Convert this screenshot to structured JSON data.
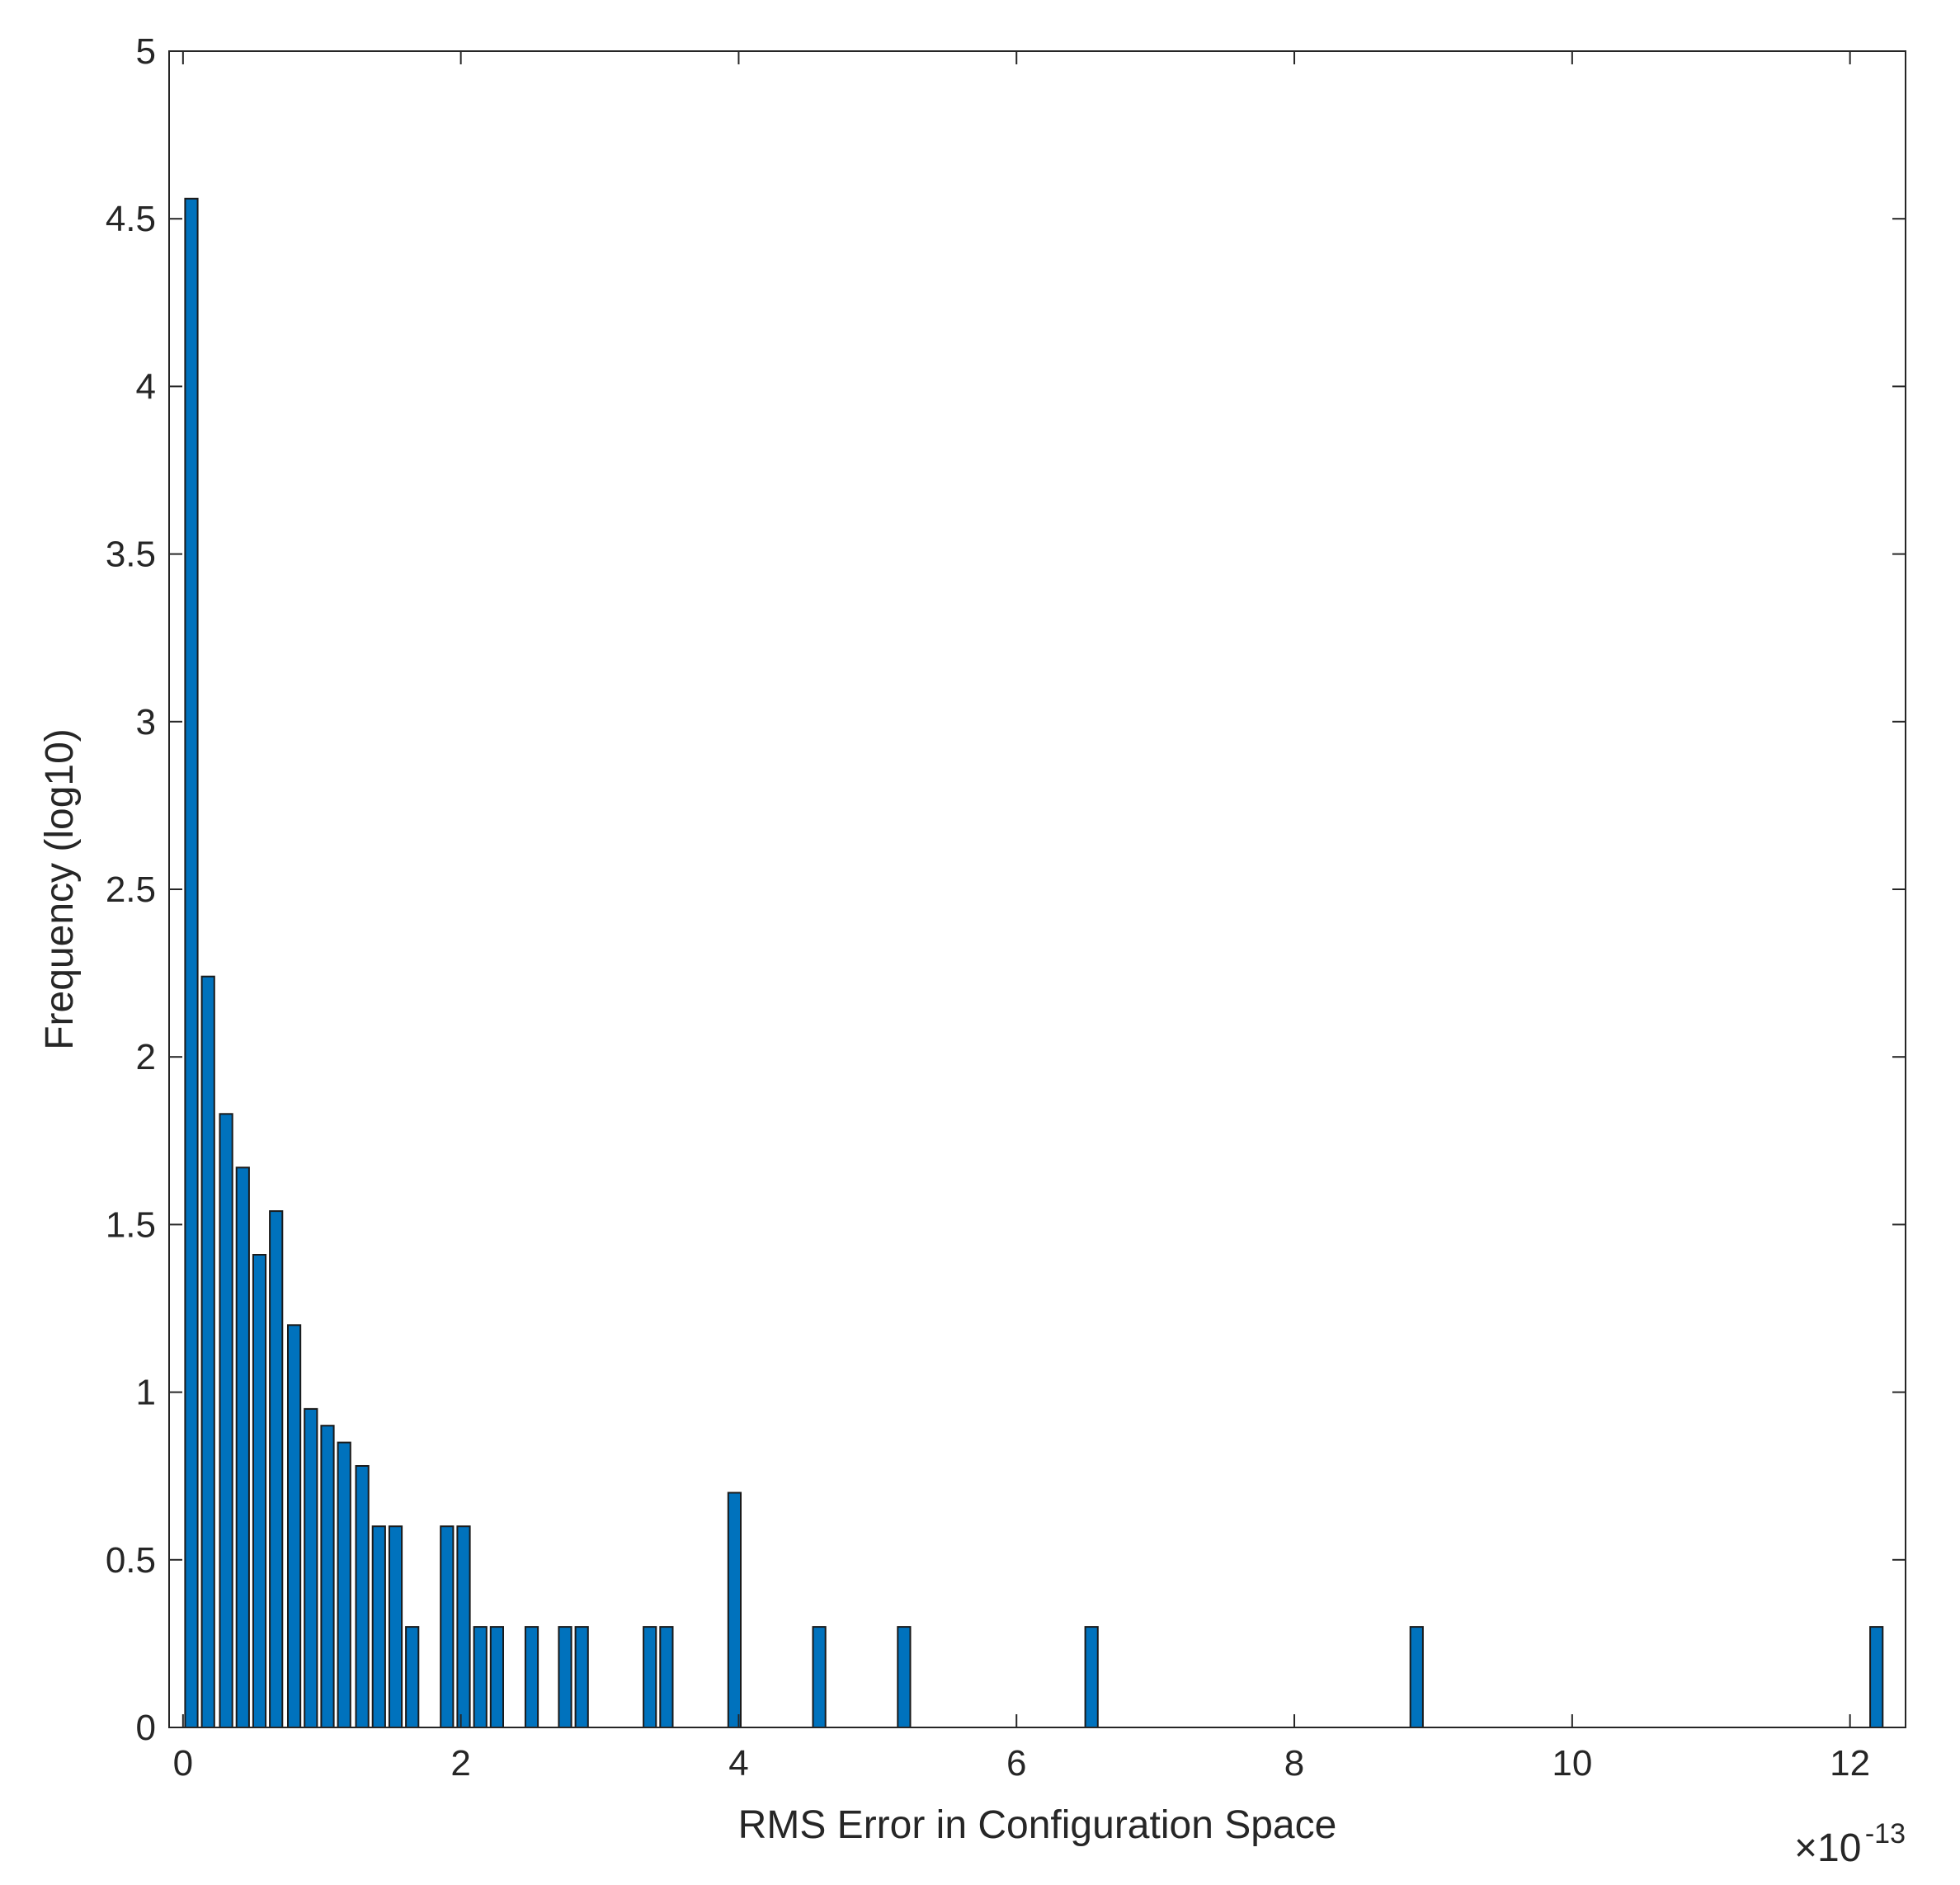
{
  "chart_data": {
    "type": "bar",
    "xlabel": "RMS Error in Configuration Space",
    "ylabel": "Frequency (log10)",
    "x_exponent_prefix": "×10",
    "x_exponent_power": "-13",
    "xlim": [
      -0.1,
      12.4
    ],
    "ylim": [
      0,
      5
    ],
    "xticks": [
      0,
      2,
      4,
      6,
      8,
      10,
      12
    ],
    "yticks": [
      0,
      0.5,
      1,
      1.5,
      2,
      2.5,
      3,
      3.5,
      4,
      4.5,
      5
    ],
    "bar_width": 0.09,
    "grid": false,
    "bar_color": "#0072BD",
    "x": [
      0.06,
      0.18,
      0.31,
      0.43,
      0.55,
      0.67,
      0.8,
      0.92,
      1.04,
      1.16,
      1.29,
      1.41,
      1.53,
      1.65,
      1.9,
      2.02,
      2.14,
      2.26,
      2.51,
      2.75,
      2.87,
      3.36,
      3.48,
      3.97,
      4.58,
      5.19,
      6.54,
      8.88,
      12.19
    ],
    "values": [
      4.56,
      2.24,
      1.83,
      1.67,
      1.41,
      1.54,
      1.2,
      0.95,
      0.9,
      0.85,
      0.78,
      0.6,
      0.6,
      0.3,
      0.6,
      0.6,
      0.3,
      0.3,
      0.3,
      0.3,
      0.3,
      0.3,
      0.3,
      0.7,
      0.3,
      0.3,
      0.3,
      0.3,
      0.3
    ]
  }
}
